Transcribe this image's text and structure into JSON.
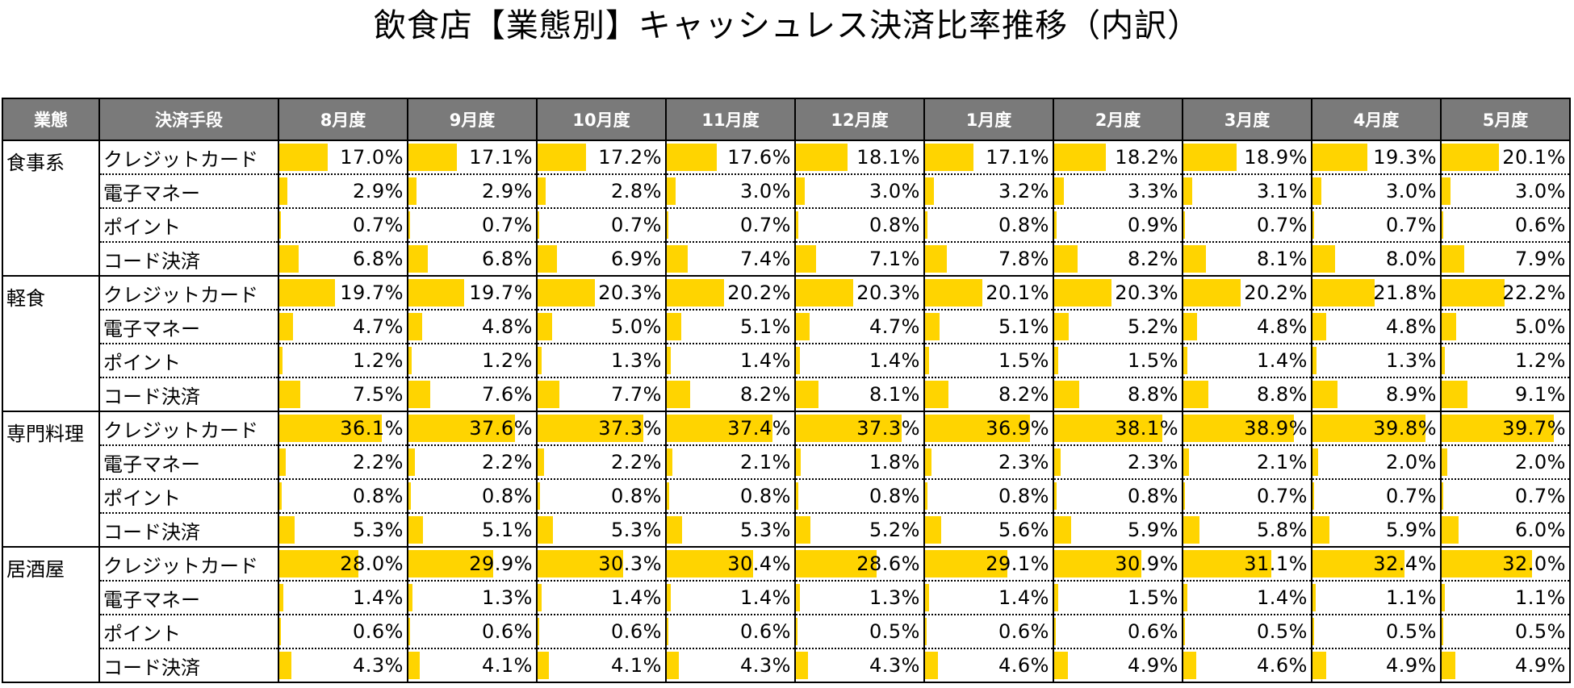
{
  "title": "飲食店【業態別】キャッシュレス決済比率推移（内訳）",
  "chart_data": {
    "type": "table",
    "title": "飲食店【業態別】キャッシュレス決済比率推移（内訳）",
    "header_category": "業態",
    "header_method": "決済手段",
    "months": [
      "8月度",
      "9月度",
      "10月度",
      "11月度",
      "12月度",
      "1月度",
      "2月度",
      "3月度",
      "4月度",
      "5月度"
    ],
    "bar_color": "#ffd400",
    "header_color": "#7a7a7a",
    "bar_scale_max": 45,
    "unit": "%",
    "groups": [
      {
        "category": "食事系",
        "rows": [
          {
            "method": "クレジットカード",
            "values": [
              17.0,
              17.1,
              17.2,
              17.6,
              18.1,
              17.1,
              18.2,
              18.9,
              19.3,
              20.1
            ]
          },
          {
            "method": "電子マネー",
            "values": [
              2.9,
              2.9,
              2.8,
              3.0,
              3.0,
              3.2,
              3.3,
              3.1,
              3.0,
              3.0
            ]
          },
          {
            "method": "ポイント",
            "values": [
              0.7,
              0.7,
              0.7,
              0.7,
              0.8,
              0.8,
              0.9,
              0.7,
              0.7,
              0.6
            ]
          },
          {
            "method": "コード決済",
            "values": [
              6.8,
              6.8,
              6.9,
              7.4,
              7.1,
              7.8,
              8.2,
              8.1,
              8.0,
              7.9
            ]
          }
        ]
      },
      {
        "category": "軽食",
        "rows": [
          {
            "method": "クレジットカード",
            "values": [
              19.7,
              19.7,
              20.3,
              20.2,
              20.3,
              20.1,
              20.3,
              20.2,
              21.8,
              22.2
            ]
          },
          {
            "method": "電子マネー",
            "values": [
              4.7,
              4.8,
              5.0,
              5.1,
              4.7,
              5.1,
              5.2,
              4.8,
              4.8,
              5.0
            ]
          },
          {
            "method": "ポイント",
            "values": [
              1.2,
              1.2,
              1.3,
              1.4,
              1.4,
              1.5,
              1.5,
              1.4,
              1.3,
              1.2
            ]
          },
          {
            "method": "コード決済",
            "values": [
              7.5,
              7.6,
              7.7,
              8.2,
              8.1,
              8.2,
              8.8,
              8.8,
              8.9,
              9.1
            ]
          }
        ]
      },
      {
        "category": "専門料理",
        "rows": [
          {
            "method": "クレジットカード",
            "values": [
              36.1,
              37.6,
              37.3,
              37.4,
              37.3,
              36.9,
              38.1,
              38.9,
              39.8,
              39.7
            ]
          },
          {
            "method": "電子マネー",
            "values": [
              2.2,
              2.2,
              2.2,
              2.1,
              1.8,
              2.3,
              2.3,
              2.1,
              2.0,
              2.0
            ]
          },
          {
            "method": "ポイント",
            "values": [
              0.8,
              0.8,
              0.8,
              0.8,
              0.8,
              0.8,
              0.8,
              0.7,
              0.7,
              0.7
            ]
          },
          {
            "method": "コード決済",
            "values": [
              5.3,
              5.1,
              5.3,
              5.3,
              5.2,
              5.6,
              5.9,
              5.8,
              5.9,
              6.0
            ]
          }
        ]
      },
      {
        "category": "居酒屋",
        "rows": [
          {
            "method": "クレジットカード",
            "values": [
              28.0,
              29.9,
              30.3,
              30.4,
              28.6,
              29.1,
              30.9,
              31.1,
              32.4,
              32.0
            ]
          },
          {
            "method": "電子マネー",
            "values": [
              1.4,
              1.3,
              1.4,
              1.4,
              1.3,
              1.4,
              1.5,
              1.4,
              1.1,
              1.1
            ]
          },
          {
            "method": "ポイント",
            "values": [
              0.6,
              0.6,
              0.6,
              0.6,
              0.5,
              0.6,
              0.6,
              0.5,
              0.5,
              0.5
            ]
          },
          {
            "method": "コード決済",
            "values": [
              4.3,
              4.1,
              4.1,
              4.3,
              4.3,
              4.6,
              4.9,
              4.6,
              4.9,
              4.9
            ]
          }
        ]
      }
    ]
  }
}
